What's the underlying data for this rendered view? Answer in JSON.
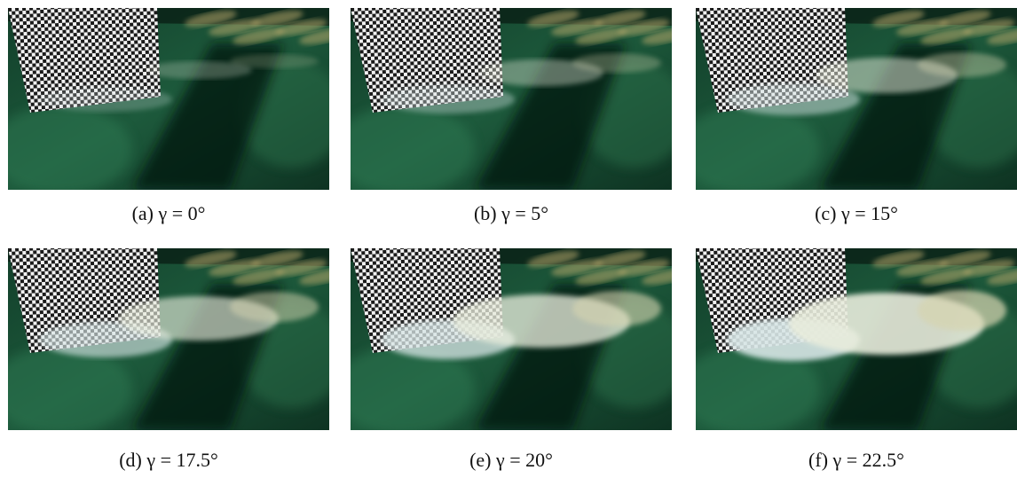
{
  "figure": {
    "panels": [
      {
        "caption": "(a) γ = 0°"
      },
      {
        "caption": "(b) γ = 5°"
      },
      {
        "caption": "(c) γ = 15°"
      },
      {
        "caption": "(d) γ = 17.5°"
      },
      {
        "caption": "(e) γ = 20°"
      },
      {
        "caption": "(f) γ = 22.5°"
      }
    ]
  }
}
